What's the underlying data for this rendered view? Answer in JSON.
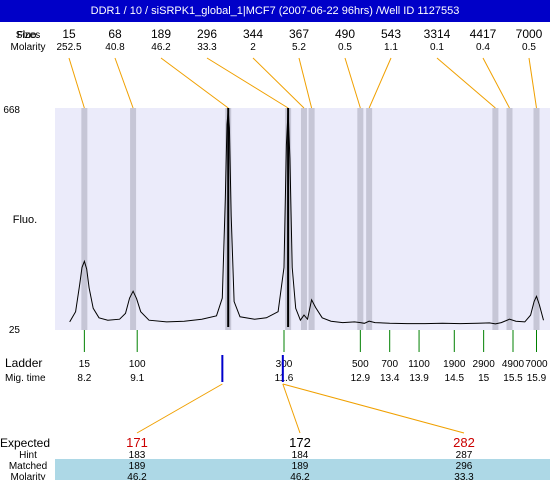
{
  "window": {
    "title": "DDR1 / 10 / siSRPK1_global_1|MCF7 (2007-06-22 96hrs) /Well ID 1127553"
  },
  "colors": {
    "title_bg": "#0000c8",
    "plot_bg": "#ebebfa",
    "band": "#c6c6d6",
    "peak_connector": "#f0a000",
    "ladder_tick": "#008000",
    "expected_marker": "#0000cc",
    "expected_value": "#cc0000",
    "row_highlight": "#add8e6"
  },
  "chart_data": {
    "type": "line",
    "title": "DDR1 / 10 / siSRPK1_global_1|MCF7 (2007-06-22 96hrs) /Well ID 1127553",
    "ylabel": "Fluo.",
    "ylim": [
      25,
      668
    ],
    "y_ticks": [
      "668",
      "25"
    ],
    "top_row_labels": [
      "Fluo.",
      "Molarity"
    ],
    "top_row_overlap_label": "Sizes",
    "peaks": [
      {
        "size": "15",
        "molarity": "252.5",
        "time": 8.2,
        "height": 218
      },
      {
        "size": "68",
        "molarity": "40.8",
        "time": 9.03,
        "height": 130
      },
      {
        "size": "189",
        "molarity": "46.2",
        "time": 10.65,
        "height": 660
      },
      {
        "size": "296",
        "molarity": "33.3",
        "time": 11.67,
        "height": 660
      },
      {
        "size": "344",
        "molarity": "2",
        "time": 11.94,
        "height": 60
      },
      {
        "size": "367",
        "molarity": "5.2",
        "time": 12.07,
        "height": 105
      },
      {
        "size": "490",
        "molarity": "0.5",
        "time": 12.9,
        "height": 38
      },
      {
        "size": "543",
        "molarity": "1.1",
        "time": 13.05,
        "height": 42
      },
      {
        "size": "3314",
        "molarity": "0.1",
        "time": 15.2,
        "height": 34
      },
      {
        "size": "4417",
        "molarity": "0.4",
        "time": 15.44,
        "height": 48
      },
      {
        "size": "7000",
        "molarity": "0.5",
        "time": 15.9,
        "height": 115
      }
    ],
    "trace_x": [
      7.95,
      8.05,
      8.12,
      8.16,
      8.2,
      8.24,
      8.28,
      8.35,
      8.45,
      8.6,
      8.8,
      8.9,
      8.97,
      9.03,
      9.09,
      9.16,
      9.3,
      9.6,
      9.9,
      10.2,
      10.45,
      10.55,
      10.6,
      10.63,
      10.65,
      10.67,
      10.7,
      10.75,
      10.85,
      11.1,
      11.3,
      11.5,
      11.6,
      11.64,
      11.67,
      11.7,
      11.74,
      11.8,
      11.88,
      11.94,
      12.0,
      12.07,
      12.14,
      12.25,
      12.4,
      12.6,
      12.8,
      12.9,
      12.97,
      13.05,
      13.15,
      13.4,
      13.7,
      14.0,
      14.3,
      14.6,
      14.9,
      15.1,
      15.2,
      15.3,
      15.44,
      15.55,
      15.7,
      15.8,
      15.86,
      15.9,
      15.95,
      16.02
    ],
    "trace_y": [
      40,
      70,
      150,
      200,
      218,
      195,
      140,
      80,
      52,
      45,
      48,
      65,
      110,
      130,
      108,
      70,
      45,
      40,
      42,
      48,
      58,
      110,
      400,
      620,
      660,
      610,
      350,
      100,
      55,
      48,
      52,
      70,
      200,
      560,
      660,
      520,
      200,
      80,
      45,
      60,
      48,
      105,
      82,
      52,
      42,
      38,
      40,
      38,
      36,
      42,
      38,
      36,
      35,
      35,
      36,
      35,
      36,
      37,
      34,
      38,
      48,
      42,
      40,
      60,
      100,
      115,
      90,
      45
    ],
    "ladder": {
      "label": "Ladder",
      "time_label": "Mig. time",
      "sizes": [
        "15",
        "100",
        "300",
        "500",
        "700",
        "1100",
        "1900",
        "2900",
        "4900",
        "7000"
      ],
      "times": [
        "8.2",
        "9.1",
        "11.6",
        "12.9",
        "13.4",
        "13.9",
        "14.5",
        "15",
        "15.5",
        "15.9"
      ]
    },
    "expected": {
      "label": "Expected",
      "hint_label": "Hint",
      "matched_label": "Matched",
      "molarity_label": "Molarity",
      "items": [
        {
          "value": "171",
          "hint": "183",
          "matched": "189",
          "molarity": "46.2",
          "time": 10.55,
          "source_peak": "189"
        },
        {
          "value": "172",
          "hint": "184",
          "matched": "189",
          "molarity": "46.2",
          "time": 11.58,
          "source_peak": "189"
        },
        {
          "value": "282",
          "hint": "287",
          "matched": "296",
          "molarity": "33.3",
          "time": 11.58,
          "source_peak": "296"
        }
      ]
    }
  }
}
